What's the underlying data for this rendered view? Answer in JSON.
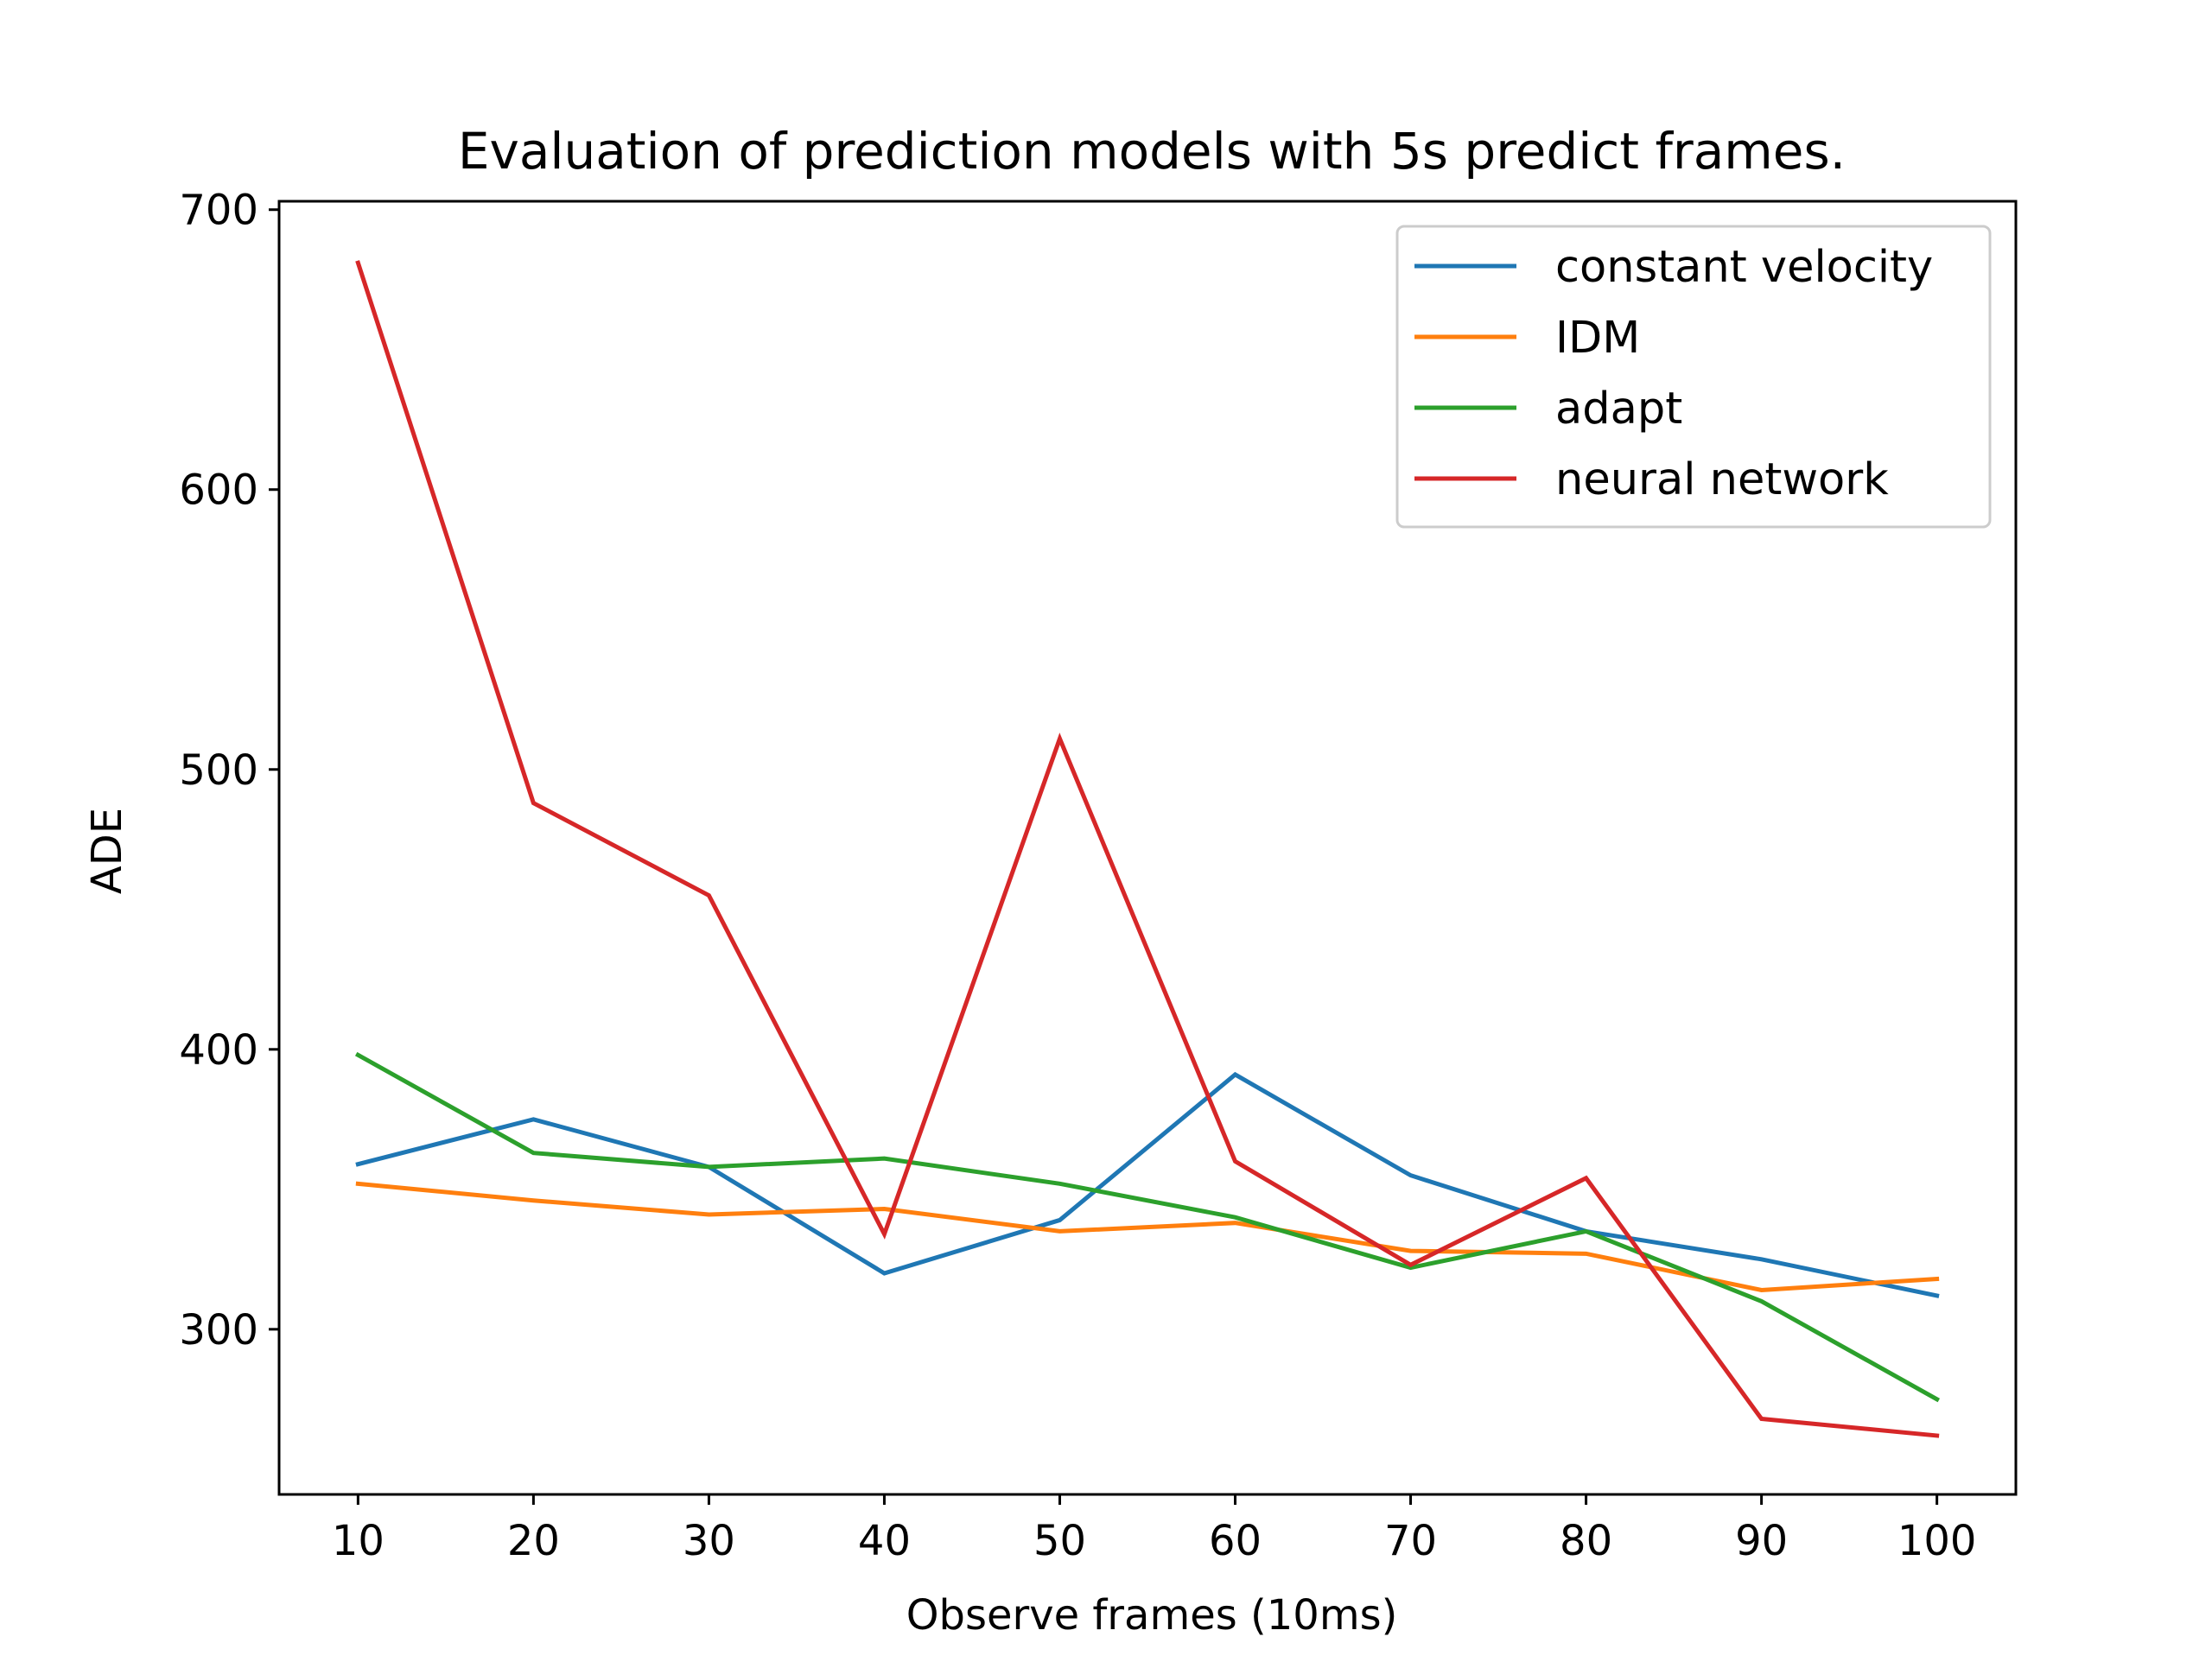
{
  "chart_data": {
    "type": "line",
    "title": "Evaluation of prediction models with 5s predict frames.",
    "xlabel": "Observe frames (10ms)",
    "ylabel": "ADE",
    "x": [
      10,
      20,
      30,
      40,
      50,
      60,
      70,
      80,
      90,
      100
    ],
    "xticks": [
      "10",
      "20",
      "30",
      "40",
      "50",
      "60",
      "70",
      "80",
      "90",
      "100"
    ],
    "yticks": [
      "300",
      "400",
      "500",
      "600",
      "700"
    ],
    "xlim": [
      5.5,
      104.5
    ],
    "ylim": [
      241,
      703
    ],
    "grid": false,
    "legend_position": "upper right",
    "series": [
      {
        "name": "constant velocity",
        "color": "#1f77b4",
        "values": [
          359,
          375,
          358,
          320,
          339,
          391,
          355,
          335,
          325,
          312
        ]
      },
      {
        "name": "IDM",
        "color": "#ff7f0e",
        "values": [
          352,
          346,
          341,
          343,
          335,
          338,
          328,
          327,
          314,
          318
        ]
      },
      {
        "name": "adapt",
        "color": "#2ca02c",
        "values": [
          398,
          363,
          358,
          361,
          352,
          340,
          322,
          335,
          310,
          275
        ]
      },
      {
        "name": "neural network",
        "color": "#d62728",
        "values": [
          681,
          488,
          455,
          334,
          511,
          360,
          323,
          354,
          268,
          262
        ]
      }
    ]
  }
}
